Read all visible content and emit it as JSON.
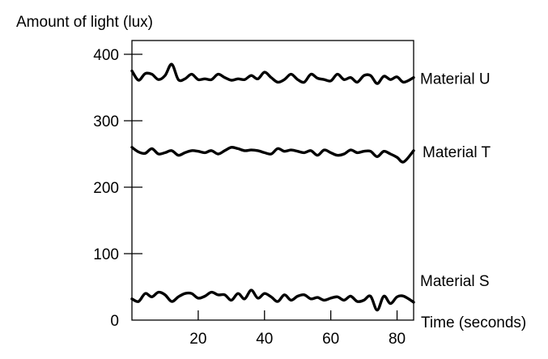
{
  "chart_data": {
    "type": "line",
    "ylabel": "Amount of light (lux)",
    "xlabel": "Time (seconds)",
    "xlim": [
      0,
      85
    ],
    "ylim": [
      0,
      400
    ],
    "x_ticks": [
      20,
      40,
      60,
      80
    ],
    "y_ticks": [
      0,
      100,
      200,
      300,
      400
    ],
    "grid": false,
    "legend": "labels at right end of each line",
    "line_color": "#000000",
    "x": [
      0,
      2,
      4,
      6,
      8,
      10,
      12,
      14,
      16,
      18,
      20,
      22,
      24,
      26,
      28,
      30,
      32,
      34,
      36,
      38,
      40,
      42,
      44,
      46,
      48,
      50,
      52,
      54,
      56,
      58,
      60,
      62,
      64,
      66,
      68,
      70,
      72,
      74,
      76,
      78,
      80,
      82,
      85
    ],
    "series": [
      {
        "name": "Material U",
        "values": [
          375,
          361,
          371,
          370,
          362,
          368,
          385,
          362,
          363,
          370,
          362,
          363,
          362,
          370,
          365,
          361,
          363,
          362,
          368,
          363,
          373,
          365,
          358,
          362,
          370,
          362,
          358,
          370,
          364,
          362,
          360,
          370,
          362,
          365,
          358,
          368,
          368,
          356,
          367,
          362,
          366,
          358,
          365
        ]
      },
      {
        "name": "Material T",
        "values": [
          260,
          253,
          251,
          258,
          250,
          252,
          255,
          248,
          252,
          255,
          254,
          252,
          255,
          250,
          255,
          260,
          258,
          255,
          256,
          255,
          252,
          250,
          258,
          254,
          256,
          254,
          252,
          255,
          248,
          256,
          252,
          248,
          250,
          256,
          252,
          254,
          254,
          246,
          254,
          250,
          245,
          238,
          255
        ]
      },
      {
        "name": "Material S",
        "values": [
          32,
          28,
          40,
          35,
          42,
          38,
          28,
          35,
          40,
          40,
          33,
          36,
          42,
          38,
          38,
          30,
          40,
          32,
          45,
          33,
          40,
          35,
          28,
          38,
          30,
          36,
          38,
          32,
          34,
          30,
          33,
          35,
          30,
          36,
          28,
          30,
          36,
          15,
          36,
          25,
          35,
          36,
          27
        ]
      }
    ]
  }
}
